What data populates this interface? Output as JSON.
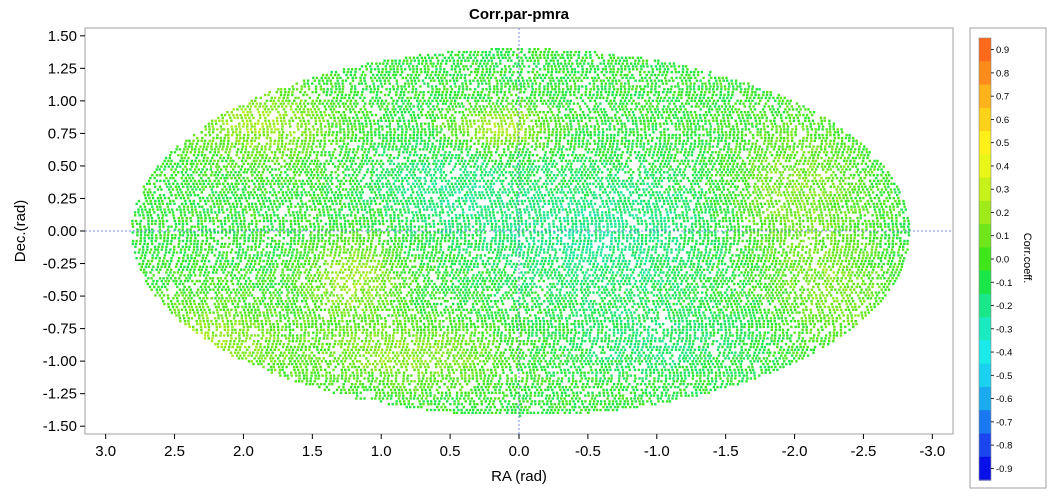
{
  "chart_data": {
    "type": "scatter",
    "projection": "aitoff-hammer",
    "title": "Corr.par-pmra",
    "xlabel": "RA (rad)",
    "ylabel": "Dec.(rad)",
    "xlim": [
      3.15,
      -3.15
    ],
    "ylim": [
      -1.56,
      1.56
    ],
    "x_ticks": [
      "3.0",
      "2.5",
      "2.0",
      "1.5",
      "1.0",
      "0.5",
      "0.0",
      "-0.5",
      "-1.0",
      "-1.5",
      "-2.0",
      "-2.5",
      "-3.0"
    ],
    "x_tick_values": [
      3.0,
      2.5,
      2.0,
      1.5,
      1.0,
      0.5,
      0.0,
      -0.5,
      -1.0,
      -1.5,
      -2.0,
      -2.5,
      -3.0
    ],
    "y_ticks": [
      "1.50",
      "1.25",
      "1.00",
      "0.75",
      "0.50",
      "0.25",
      "0.00",
      "-0.25",
      "-0.50",
      "-0.75",
      "-1.00",
      "-1.25",
      "-1.50"
    ],
    "y_tick_values": [
      1.5,
      1.25,
      1.0,
      0.75,
      0.5,
      0.25,
      0.0,
      -0.25,
      -0.5,
      -0.75,
      -1.0,
      -1.25,
      -1.5
    ],
    "ellipse_semi_axes": {
      "x": 2.82,
      "y": 1.41
    },
    "zero_lines": true,
    "colorbar": {
      "label": "Corr.coeff.",
      "ticks": [
        "0.9",
        "0.8",
        "0.7",
        "0.6",
        "0.5",
        "0.4",
        "0.3",
        "0.2",
        "0.1",
        "0.0",
        "-0.1",
        "-0.2",
        "-0.3",
        "-0.4",
        "-0.5",
        "-0.6",
        "-0.7",
        "-0.8",
        "-0.9"
      ],
      "tick_values": [
        0.9,
        0.8,
        0.7,
        0.6,
        0.5,
        0.4,
        0.3,
        0.2,
        0.1,
        0.0,
        -0.1,
        -0.2,
        -0.3,
        -0.4,
        -0.5,
        -0.6,
        -0.7,
        -0.8,
        -0.9
      ],
      "range": [
        -0.95,
        0.95
      ],
      "stops": [
        {
          "value": 0.9,
          "color": "#ff6a1a"
        },
        {
          "value": 0.8,
          "color": "#ff8c1a"
        },
        {
          "value": 0.7,
          "color": "#ffb21a"
        },
        {
          "value": 0.6,
          "color": "#ffd21a"
        },
        {
          "value": 0.5,
          "color": "#fff01a"
        },
        {
          "value": 0.4,
          "color": "#eaf51a"
        },
        {
          "value": 0.3,
          "color": "#c8f01a"
        },
        {
          "value": 0.2,
          "color": "#a0ea1a"
        },
        {
          "value": 0.1,
          "color": "#6ee61a"
        },
        {
          "value": 0.0,
          "color": "#3ee61a"
        },
        {
          "value": -0.1,
          "color": "#1ae64a"
        },
        {
          "value": -0.2,
          "color": "#1ae68a"
        },
        {
          "value": -0.3,
          "color": "#1aeac0"
        },
        {
          "value": -0.4,
          "color": "#1aeaea"
        },
        {
          "value": -0.5,
          "color": "#1ad2f0"
        },
        {
          "value": -0.6,
          "color": "#1aaaf0"
        },
        {
          "value": -0.7,
          "color": "#1a78f0"
        },
        {
          "value": -0.8,
          "color": "#1a46f0"
        },
        {
          "value": -0.9,
          "color": "#0a10e8"
        }
      ]
    },
    "regions": [
      {
        "kind": "base",
        "corr": -0.05
      },
      {
        "kind": "blob",
        "ra": 1.9,
        "dec": 0.85,
        "sra": 0.55,
        "sdec": 0.3,
        "corr": 0.22
      },
      {
        "kind": "blob",
        "ra": 2.3,
        "dec": -0.85,
        "sra": 0.6,
        "sdec": 0.35,
        "corr": 0.2
      },
      {
        "kind": "blob",
        "ra": 0.8,
        "dec": -0.95,
        "sra": 0.7,
        "sdec": 0.25,
        "corr": 0.18
      },
      {
        "kind": "blob",
        "ra": 0.15,
        "dec": 0.8,
        "sra": 0.35,
        "sdec": 0.15,
        "corr": 0.3
      },
      {
        "kind": "blob",
        "ra": 1.2,
        "dec": -0.35,
        "sra": 0.35,
        "sdec": 0.3,
        "corr": 0.22
      },
      {
        "kind": "blob",
        "ra": -2.0,
        "dec": 0.3,
        "sra": 0.5,
        "sdec": 0.6,
        "corr": 0.15
      },
      {
        "kind": "blob",
        "ra": -2.3,
        "dec": -0.5,
        "sra": 0.4,
        "sdec": 0.4,
        "corr": 0.12
      },
      {
        "kind": "blob",
        "ra": -0.6,
        "dec": 0.0,
        "sra": 0.9,
        "sdec": 0.5,
        "corr": -0.22
      },
      {
        "kind": "blob",
        "ra": 0.6,
        "dec": 0.35,
        "sra": 0.5,
        "sdec": 0.35,
        "corr": -0.18
      },
      {
        "kind": "blob",
        "ra": -1.0,
        "dec": -0.85,
        "sra": 0.7,
        "sdec": 0.3,
        "corr": -0.15
      }
    ]
  }
}
